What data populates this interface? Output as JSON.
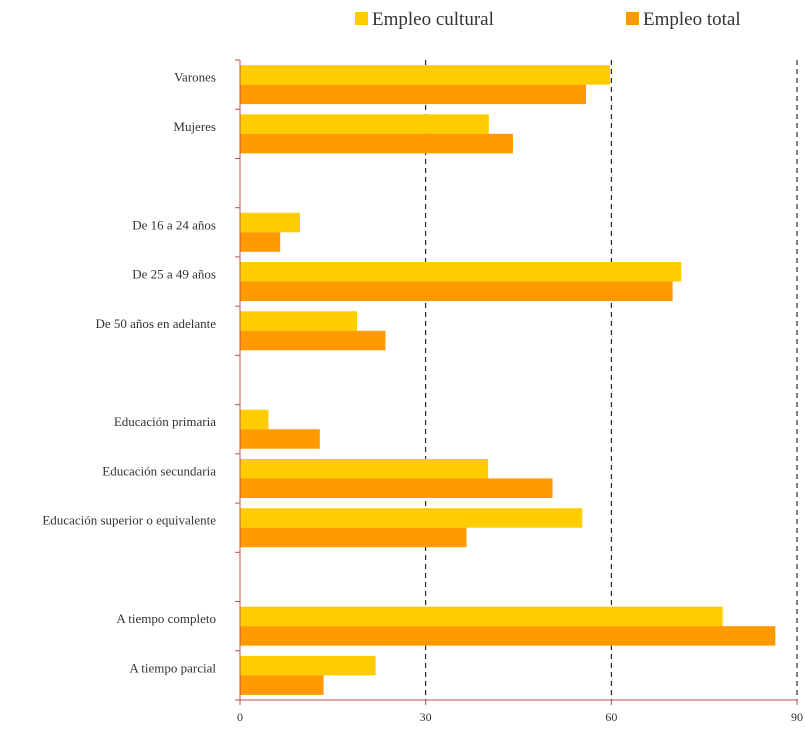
{
  "chart_data": {
    "type": "bar",
    "orientation": "horizontal",
    "categories": [
      "Varones",
      "Mujeres",
      "",
      "De 16 a 24 años",
      "De 25 a 49 años",
      "De 50 años en adelante",
      "",
      "Educación primaria",
      "Educación secundaria",
      "Educación superior o equivalente",
      "",
      "A tiempo completo",
      "A tiempo parcial"
    ],
    "series": [
      {
        "name": "Empleo cultural",
        "color": "#FFCC00",
        "values": [
          59.8,
          40.2,
          null,
          9.7,
          71.3,
          18.9,
          null,
          4.6,
          40.1,
          55.3,
          null,
          78.0,
          21.9
        ]
      },
      {
        "name": "Empleo total",
        "color": "#FF9900",
        "values": [
          55.9,
          44.1,
          null,
          6.5,
          69.9,
          23.5,
          null,
          12.9,
          50.5,
          36.6,
          null,
          86.5,
          13.5
        ]
      }
    ],
    "xlim": [
      0,
      90
    ],
    "xticks": [
      "0",
      "30",
      "60",
      "90"
    ],
    "grid": "vertical dashed",
    "legend_position": "top"
  }
}
